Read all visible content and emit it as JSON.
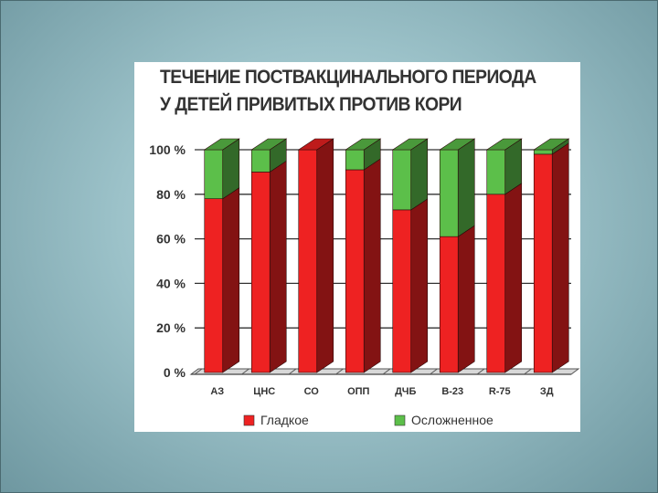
{
  "slide": {
    "background_color": "#9cc2c9"
  },
  "chart_data": {
    "type": "bar",
    "stacked": true,
    "style": "3d",
    "title_lines": [
      "ТЕЧЕНИЕ ПОСТВАКЦИНАЛЬНОГО ПЕРИОДА",
      "У ДЕТЕЙ ПРИВИТЫХ ПРОТИВ КОРИ"
    ],
    "categories": [
      "АЗ",
      "ЦНС",
      "СО",
      "ОПП",
      "ДЧБ",
      "В-23",
      "R-75",
      "ЗД"
    ],
    "series": [
      {
        "name": "Гладкое",
        "color": "#ee2222",
        "values": [
          78,
          90,
          100,
          91,
          73,
          61,
          80,
          98
        ]
      },
      {
        "name": "Осложненное",
        "color": "#5cbf4a",
        "values": [
          22,
          10,
          0,
          9,
          27,
          39,
          20,
          2
        ]
      }
    ],
    "y_ticks": [
      "0 %",
      "20 %",
      "40 %",
      "60 %",
      "80 %",
      "100 %"
    ],
    "ylim": [
      0,
      100
    ],
    "grid": true,
    "legend": "bottom"
  }
}
